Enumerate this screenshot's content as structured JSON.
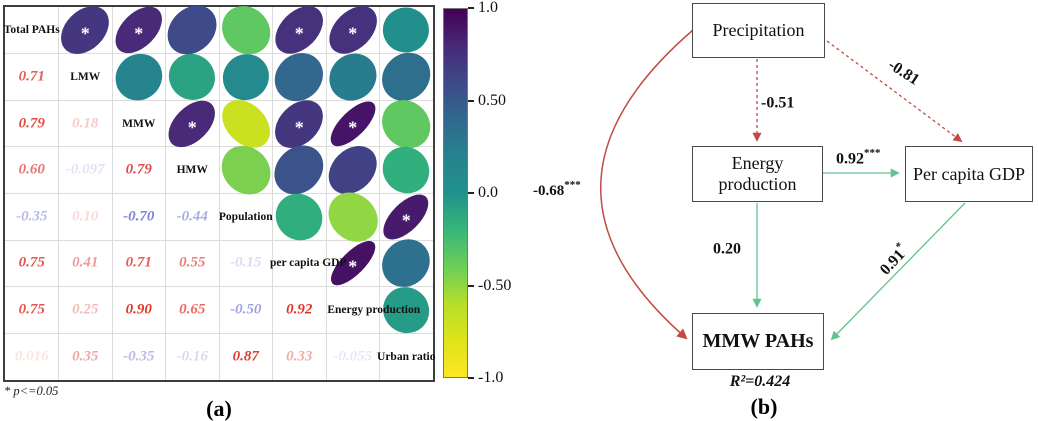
{
  "figure": {
    "panel_a_caption": "(a)",
    "panel_b_caption": "(b)",
    "footnote": "* p<=0.05"
  },
  "chart_data": [
    {
      "type": "heatmap",
      "subtype": "correlation-ellipse-matrix",
      "variables": [
        "Total PAHs",
        "LMW",
        "MMW",
        "HMW",
        "Population",
        "per capita GDP",
        "Energy production",
        "Urban ratio"
      ],
      "matrix_lower_triangle": [
        [],
        [
          0.71
        ],
        [
          0.79,
          0.18
        ],
        [
          0.6,
          -0.097,
          0.79
        ],
        [
          -0.35,
          0.1,
          -0.7,
          -0.44
        ],
        [
          0.75,
          0.41,
          0.71,
          0.55,
          -0.15
        ],
        [
          0.75,
          0.25,
          0.9,
          0.65,
          -0.5,
          0.92
        ],
        [
          0.016,
          0.35,
          -0.35,
          -0.16,
          0.87,
          0.33,
          -0.055
        ]
      ],
      "display_lower_triangle": [
        [],
        [
          "0.71"
        ],
        [
          "0.79",
          "0.18"
        ],
        [
          "0.60",
          "-0.097",
          "0.79"
        ],
        [
          "-0.35",
          "0.10",
          "-0.70",
          "-0.44"
        ],
        [
          "0.75",
          "0.41",
          "0.71",
          "0.55",
          "-0.15"
        ],
        [
          "0.75",
          "0.25",
          "0.90",
          "0.65",
          "-0.50",
          "0.92"
        ],
        [
          "0.016",
          "0.35",
          "-0.35",
          "-0.16",
          "0.87",
          "0.33",
          "-0.055"
        ]
      ],
      "significant_pairs_starred": [
        [
          0,
          1
        ],
        [
          0,
          2
        ],
        [
          0,
          5
        ],
        [
          0,
          6
        ],
        [
          2,
          3
        ],
        [
          2,
          5
        ],
        [
          2,
          6
        ],
        [
          4,
          7
        ],
        [
          5,
          6
        ]
      ],
      "star_symbol": "*",
      "footnote": "* p<=0.05",
      "positive_value_color": "#e03228",
      "negative_value_color": "#5a60c8",
      "colorbar": {
        "range": [
          -1,
          1
        ],
        "tick_labels": [
          "1.0",
          "0.50",
          "0.0",
          "-0.50",
          "-1.0"
        ],
        "tick_values": [
          1,
          0.5,
          0,
          -0.5,
          -1
        ],
        "colormap": "viridis",
        "stops_high_to_low": [
          "#440154",
          "#482878",
          "#3e4a89",
          "#31688e",
          "#26828e",
          "#21918c",
          "#35b779",
          "#6dcd59",
          "#b4de2c",
          "#dfe318",
          "#fde725"
        ]
      }
    },
    {
      "type": "path-diagram",
      "nodes": [
        {
          "id": "precipitation",
          "label": "Precipitation"
        },
        {
          "id": "energy",
          "label": "Energy production"
        },
        {
          "id": "gdp",
          "label": "Per capita GDP"
        },
        {
          "id": "mmw",
          "label": "MMW PAHs"
        }
      ],
      "edges": [
        {
          "from": "precipitation",
          "to": "energy",
          "coef": "-0.51",
          "sup": "",
          "style": "dashed",
          "sign": "negative"
        },
        {
          "from": "precipitation",
          "to": "gdp",
          "coef": "-0.81",
          "sup": "",
          "style": "dashed",
          "sign": "negative"
        },
        {
          "from": "precipitation",
          "to": "mmw",
          "coef": "-0.68",
          "sup": "***",
          "style": "solid",
          "sign": "negative"
        },
        {
          "from": "energy",
          "to": "gdp",
          "coef": "0.92",
          "sup": "***",
          "style": "solid",
          "sign": "positive"
        },
        {
          "from": "energy",
          "to": "mmw",
          "coef": "0.20",
          "sup": "",
          "style": "solid",
          "sign": "positive"
        },
        {
          "from": "gdp",
          "to": "mmw",
          "coef": "0.91",
          "sup": "*",
          "style": "solid",
          "sign": "positive"
        }
      ],
      "r_squared_label": "R²=0.424",
      "positive_edge_color": "#5fc48f",
      "negative_edge_color": "#c14b42"
    }
  ]
}
